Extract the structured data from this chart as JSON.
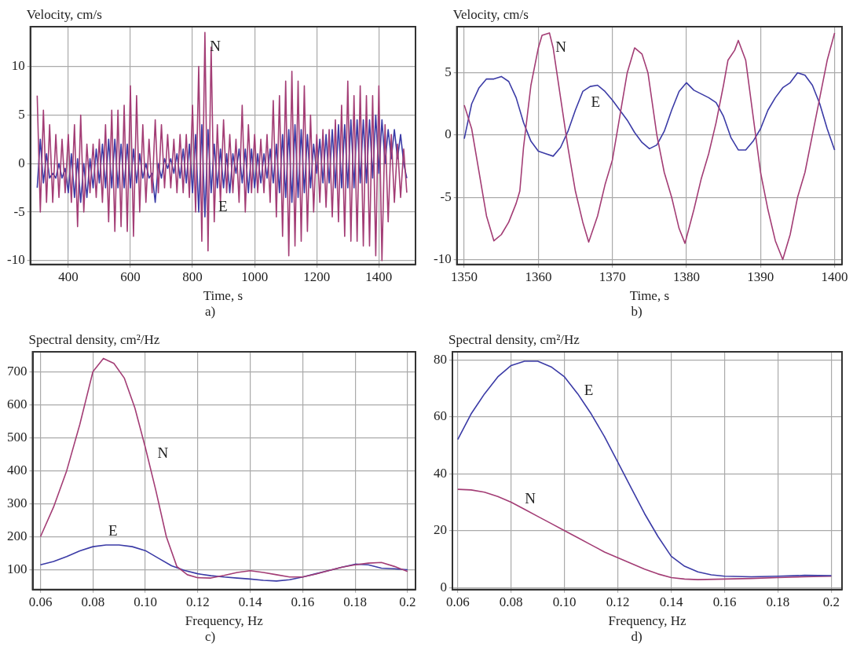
{
  "chart_data": [
    {
      "type": "line",
      "title": "a)",
      "xlabel": "Time, s",
      "ylabel": "Velocity, cm/s",
      "grid": true,
      "xlim": [
        278,
        1518
      ],
      "ylim": [
        -10.4,
        14.1
      ],
      "xticks": [
        400,
        600,
        800,
        1000,
        1200,
        1400
      ],
      "yticks": [
        -10,
        -5,
        0,
        5,
        10
      ],
      "x": [
        300,
        310,
        320,
        330,
        340,
        350,
        360,
        370,
        380,
        390,
        400,
        410,
        420,
        430,
        440,
        450,
        460,
        470,
        480,
        490,
        500,
        510,
        520,
        530,
        540,
        550,
        560,
        570,
        580,
        590,
        600,
        610,
        620,
        630,
        640,
        650,
        660,
        670,
        680,
        690,
        700,
        710,
        720,
        730,
        740,
        750,
        760,
        770,
        780,
        790,
        800,
        810,
        820,
        830,
        840,
        850,
        860,
        870,
        880,
        890,
        900,
        910,
        920,
        930,
        940,
        950,
        960,
        970,
        980,
        990,
        1000,
        1010,
        1020,
        1030,
        1040,
        1050,
        1060,
        1070,
        1080,
        1090,
        1100,
        1110,
        1120,
        1130,
        1140,
        1150,
        1160,
        1170,
        1180,
        1190,
        1200,
        1210,
        1220,
        1230,
        1240,
        1250,
        1260,
        1270,
        1280,
        1290,
        1300,
        1310,
        1320,
        1330,
        1340,
        1350,
        1360,
        1370,
        1380,
        1390,
        1400,
        1410,
        1420,
        1430,
        1440,
        1450,
        1460,
        1470,
        1480,
        1490
      ],
      "series": [
        {
          "name": "N",
          "color": "#a33d75",
          "values": [
            7,
            -5,
            5.5,
            -4,
            4,
            -4,
            3,
            -3.5,
            2.5,
            -3,
            3,
            -4,
            4,
            -6.5,
            5,
            -5,
            2,
            -3,
            2,
            -3.5,
            2.5,
            -4,
            4,
            -6,
            5.5,
            -7,
            5.5,
            -6.5,
            6,
            -7,
            8,
            -7.5,
            7,
            -5,
            4,
            -4,
            2.5,
            -3,
            4.5,
            -3,
            4,
            -2.5,
            3,
            -2.5,
            2.5,
            -3,
            3,
            -3,
            3,
            -3.5,
            6,
            -5,
            10,
            -8,
            13.5,
            -9,
            12,
            -6,
            4,
            -4,
            4.5,
            -3,
            3,
            -3,
            2.5,
            -4,
            6,
            -5,
            4,
            -3,
            3,
            -3,
            2.5,
            -3,
            3,
            -4,
            6.5,
            -5.5,
            7,
            -7.5,
            8.5,
            -9.5,
            9.5,
            -8.5,
            8.5,
            -8,
            8,
            -7,
            5,
            -5,
            3,
            -4,
            3.5,
            -4.5,
            3.5,
            -5.5,
            4.5,
            -6,
            6,
            -7.5,
            8.5,
            -8,
            7,
            -8,
            8,
            -8.5,
            7,
            -8.5,
            7,
            -9.5,
            8,
            -10,
            4,
            -6,
            3,
            -4,
            2,
            -3.5,
            1.5,
            -3
          ]
        },
        {
          "name": "E",
          "color": "#3b3ba6",
          "values": [
            -2.5,
            2.5,
            -2,
            1,
            -1.5,
            -1,
            -1.5,
            0,
            -1.5,
            -0.5,
            -3,
            1,
            -3.5,
            0.5,
            -4,
            0,
            -3.5,
            0.5,
            -2.5,
            1.5,
            -2,
            2,
            -2.5,
            2.5,
            -2.5,
            2.5,
            -2.5,
            2,
            -2.5,
            2,
            -2.5,
            1.5,
            -2,
            1,
            -1.5,
            0,
            -1.5,
            -1,
            -4,
            0,
            -1.5,
            0.5,
            -0.5,
            0.5,
            -1,
            1,
            -1.5,
            1.5,
            -2,
            2,
            -3,
            3,
            -5,
            4,
            -5.5,
            3.5,
            -3,
            2,
            -2.5,
            1.5,
            -2.5,
            1,
            -3,
            1,
            -1,
            1.5,
            -2,
            1.5,
            -3,
            1.5,
            -2.5,
            1,
            -2,
            1,
            -1.5,
            1.5,
            -2,
            2,
            -3,
            3,
            -3.5,
            3.5,
            -4,
            4,
            -3.5,
            3.5,
            -3,
            3,
            -2.5,
            2,
            -1,
            2.5,
            -2,
            3,
            -2,
            3.5,
            -2.5,
            4,
            -2.5,
            4,
            -2.5,
            4.5,
            -2.5,
            4.5,
            -2,
            4.5,
            -2,
            4.5,
            -1.5,
            5,
            -1,
            4.5,
            0,
            3.5,
            0.5,
            3.5,
            0.5,
            3,
            0,
            -1.5
          ]
        }
      ]
    },
    {
      "type": "line",
      "title": "b)",
      "xlabel": "Time, s",
      "ylabel": "Velocity, cm/s",
      "grid": true,
      "xlim": [
        1349,
        1401
      ],
      "ylim": [
        -10.4,
        8.7
      ],
      "xticks": [
        1350,
        1360,
        1370,
        1380,
        1390,
        1400
      ],
      "yticks": [
        -10,
        -5,
        0,
        5
      ],
      "series": [
        {
          "name": "N",
          "color": "#a33d75",
          "x": [
            1350,
            1351,
            1352,
            1353,
            1354,
            1355,
            1356,
            1357,
            1357.5,
            1358,
            1359,
            1360,
            1360.5,
            1361.5,
            1362,
            1363,
            1364,
            1365,
            1366,
            1366.8,
            1368,
            1369,
            1370,
            1371,
            1372,
            1373,
            1374,
            1374.8,
            1376,
            1377,
            1378,
            1379,
            1379.8,
            1381,
            1382,
            1383,
            1384,
            1385,
            1385.6,
            1386.5,
            1387,
            1388,
            1389,
            1390,
            1391,
            1392,
            1393,
            1394,
            1395,
            1396,
            1397,
            1398,
            1399,
            1400
          ],
          "values": [
            2.4,
            0.5,
            -3,
            -6.5,
            -8.5,
            -8,
            -7,
            -5.5,
            -4.5,
            -1,
            4,
            7,
            8,
            8.2,
            7,
            3,
            -1,
            -4.5,
            -7,
            -8.6,
            -6.5,
            -4,
            -2,
            1.5,
            5,
            7,
            6.5,
            5,
            0,
            -3,
            -5,
            -7.5,
            -8.7,
            -6,
            -3.5,
            -1.5,
            1,
            4,
            6,
            6.8,
            7.6,
            6,
            1.5,
            -3,
            -6,
            -8.5,
            -10,
            -8,
            -5,
            -3,
            0,
            3,
            6,
            8.2
          ]
        },
        {
          "name": "E",
          "color": "#3b3ba6",
          "x": [
            1350,
            1351,
            1352,
            1353,
            1354,
            1355,
            1356,
            1357,
            1358,
            1359,
            1360,
            1361,
            1362,
            1363,
            1364,
            1365,
            1366,
            1367,
            1368,
            1369,
            1370,
            1371,
            1372,
            1373,
            1374,
            1375,
            1376,
            1377,
            1378,
            1379,
            1380,
            1381,
            1382,
            1383,
            1384,
            1385,
            1386,
            1387,
            1388,
            1389,
            1390,
            1391,
            1392,
            1393,
            1394,
            1395,
            1396,
            1397,
            1398,
            1399,
            1400
          ],
          "values": [
            -0.3,
            2.5,
            3.8,
            4.5,
            4.5,
            4.7,
            4.3,
            3,
            1,
            -0.5,
            -1.3,
            -1.5,
            -1.7,
            -1,
            0.3,
            2,
            3.5,
            3.9,
            4,
            3.5,
            2.8,
            2,
            1.2,
            0.2,
            -0.6,
            -1.1,
            -0.8,
            0.3,
            2,
            3.5,
            4.2,
            3.6,
            3.3,
            3,
            2.6,
            1.5,
            -0.2,
            -1.2,
            -1.2,
            -0.5,
            0.5,
            2,
            3,
            3.8,
            4.2,
            5,
            4.8,
            4,
            2.5,
            0.5,
            -1.2
          ]
        }
      ]
    },
    {
      "type": "line",
      "title": "c)",
      "xlabel": "Frequency, Hz",
      "ylabel": "Spectral density, cm²/Hz",
      "grid": true,
      "xlim": [
        0.057,
        0.203
      ],
      "ylim": [
        40,
        760
      ],
      "xticks": [
        0.06,
        0.08,
        {
          "value": 0.1,
          "label": "0.10"
        },
        0.12,
        0.14,
        0.16,
        0.18,
        0.2
      ],
      "yticks": [
        100,
        200,
        300,
        400,
        500,
        600,
        700
      ],
      "series": [
        {
          "name": "N",
          "color": "#a33d75",
          "x": [
            0.06,
            0.065,
            0.07,
            0.075,
            0.08,
            0.084,
            0.088,
            0.092,
            0.096,
            0.1,
            0.104,
            0.108,
            0.112,
            0.116,
            0.12,
            0.125,
            0.13,
            0.135,
            0.14,
            0.145,
            0.15,
            0.155,
            0.16,
            0.165,
            0.17,
            0.175,
            0.18,
            0.185,
            0.19,
            0.195,
            0.2
          ],
          "values": [
            200,
            290,
            400,
            540,
            700,
            740,
            725,
            680,
            590,
            470,
            340,
            200,
            110,
            85,
            76,
            75,
            83,
            92,
            97,
            92,
            85,
            78,
            78,
            87,
            98,
            108,
            115,
            120,
            122,
            110,
            95
          ]
        },
        {
          "name": "E",
          "color": "#3b3ba6",
          "x": [
            0.06,
            0.065,
            0.07,
            0.075,
            0.08,
            0.085,
            0.09,
            0.095,
            0.1,
            0.105,
            0.11,
            0.115,
            0.12,
            0.125,
            0.13,
            0.135,
            0.14,
            0.145,
            0.15,
            0.155,
            0.16,
            0.165,
            0.17,
            0.175,
            0.18,
            0.185,
            0.19,
            0.195,
            0.2
          ],
          "values": [
            115,
            125,
            140,
            157,
            170,
            175,
            175,
            170,
            158,
            135,
            112,
            98,
            88,
            82,
            78,
            75,
            72,
            68,
            66,
            70,
            78,
            88,
            98,
            108,
            117,
            115,
            105,
            103,
            100
          ]
        }
      ]
    },
    {
      "type": "line",
      "title": "d)",
      "xlabel": "Frequency, Hz",
      "ylabel": "Spectral density, cm²/Hz",
      "grid": true,
      "xlim": [
        0.058,
        0.204
      ],
      "ylim": [
        -0.7,
        82.8
      ],
      "xticks": [
        0.06,
        0.08,
        {
          "value": 0.1,
          "label": "0.10"
        },
        0.12,
        0.14,
        0.16,
        0.18,
        0.2
      ],
      "yticks": [
        0,
        20,
        40,
        60,
        80
      ],
      "series": [
        {
          "name": "E",
          "color": "#3b3ba6",
          "x": [
            0.06,
            0.065,
            0.07,
            0.075,
            0.08,
            0.085,
            0.09,
            0.095,
            0.1,
            0.105,
            0.11,
            0.115,
            0.12,
            0.125,
            0.13,
            0.135,
            0.14,
            0.145,
            0.15,
            0.155,
            0.16,
            0.17,
            0.18,
            0.19,
            0.2
          ],
          "values": [
            52,
            61,
            68,
            74,
            78,
            79.5,
            79.5,
            77.5,
            74,
            68,
            61,
            53,
            44,
            35,
            26,
            18,
            11,
            7.5,
            5.5,
            4.5,
            4,
            3.8,
            4,
            4.3,
            4.2
          ]
        },
        {
          "name": "N",
          "color": "#a33d75",
          "x": [
            0.06,
            0.065,
            0.07,
            0.075,
            0.08,
            0.085,
            0.09,
            0.095,
            0.1,
            0.105,
            0.11,
            0.115,
            0.12,
            0.125,
            0.13,
            0.135,
            0.14,
            0.145,
            0.15,
            0.16,
            0.17,
            0.18,
            0.19,
            0.2
          ],
          "values": [
            34.5,
            34.3,
            33.5,
            32,
            30,
            27.5,
            25,
            22.5,
            20,
            17.5,
            15,
            12.5,
            10.5,
            8.5,
            6.5,
            4.8,
            3.5,
            3,
            2.8,
            3,
            3.2,
            3.5,
            3.8,
            4
          ]
        }
      ]
    }
  ]
}
